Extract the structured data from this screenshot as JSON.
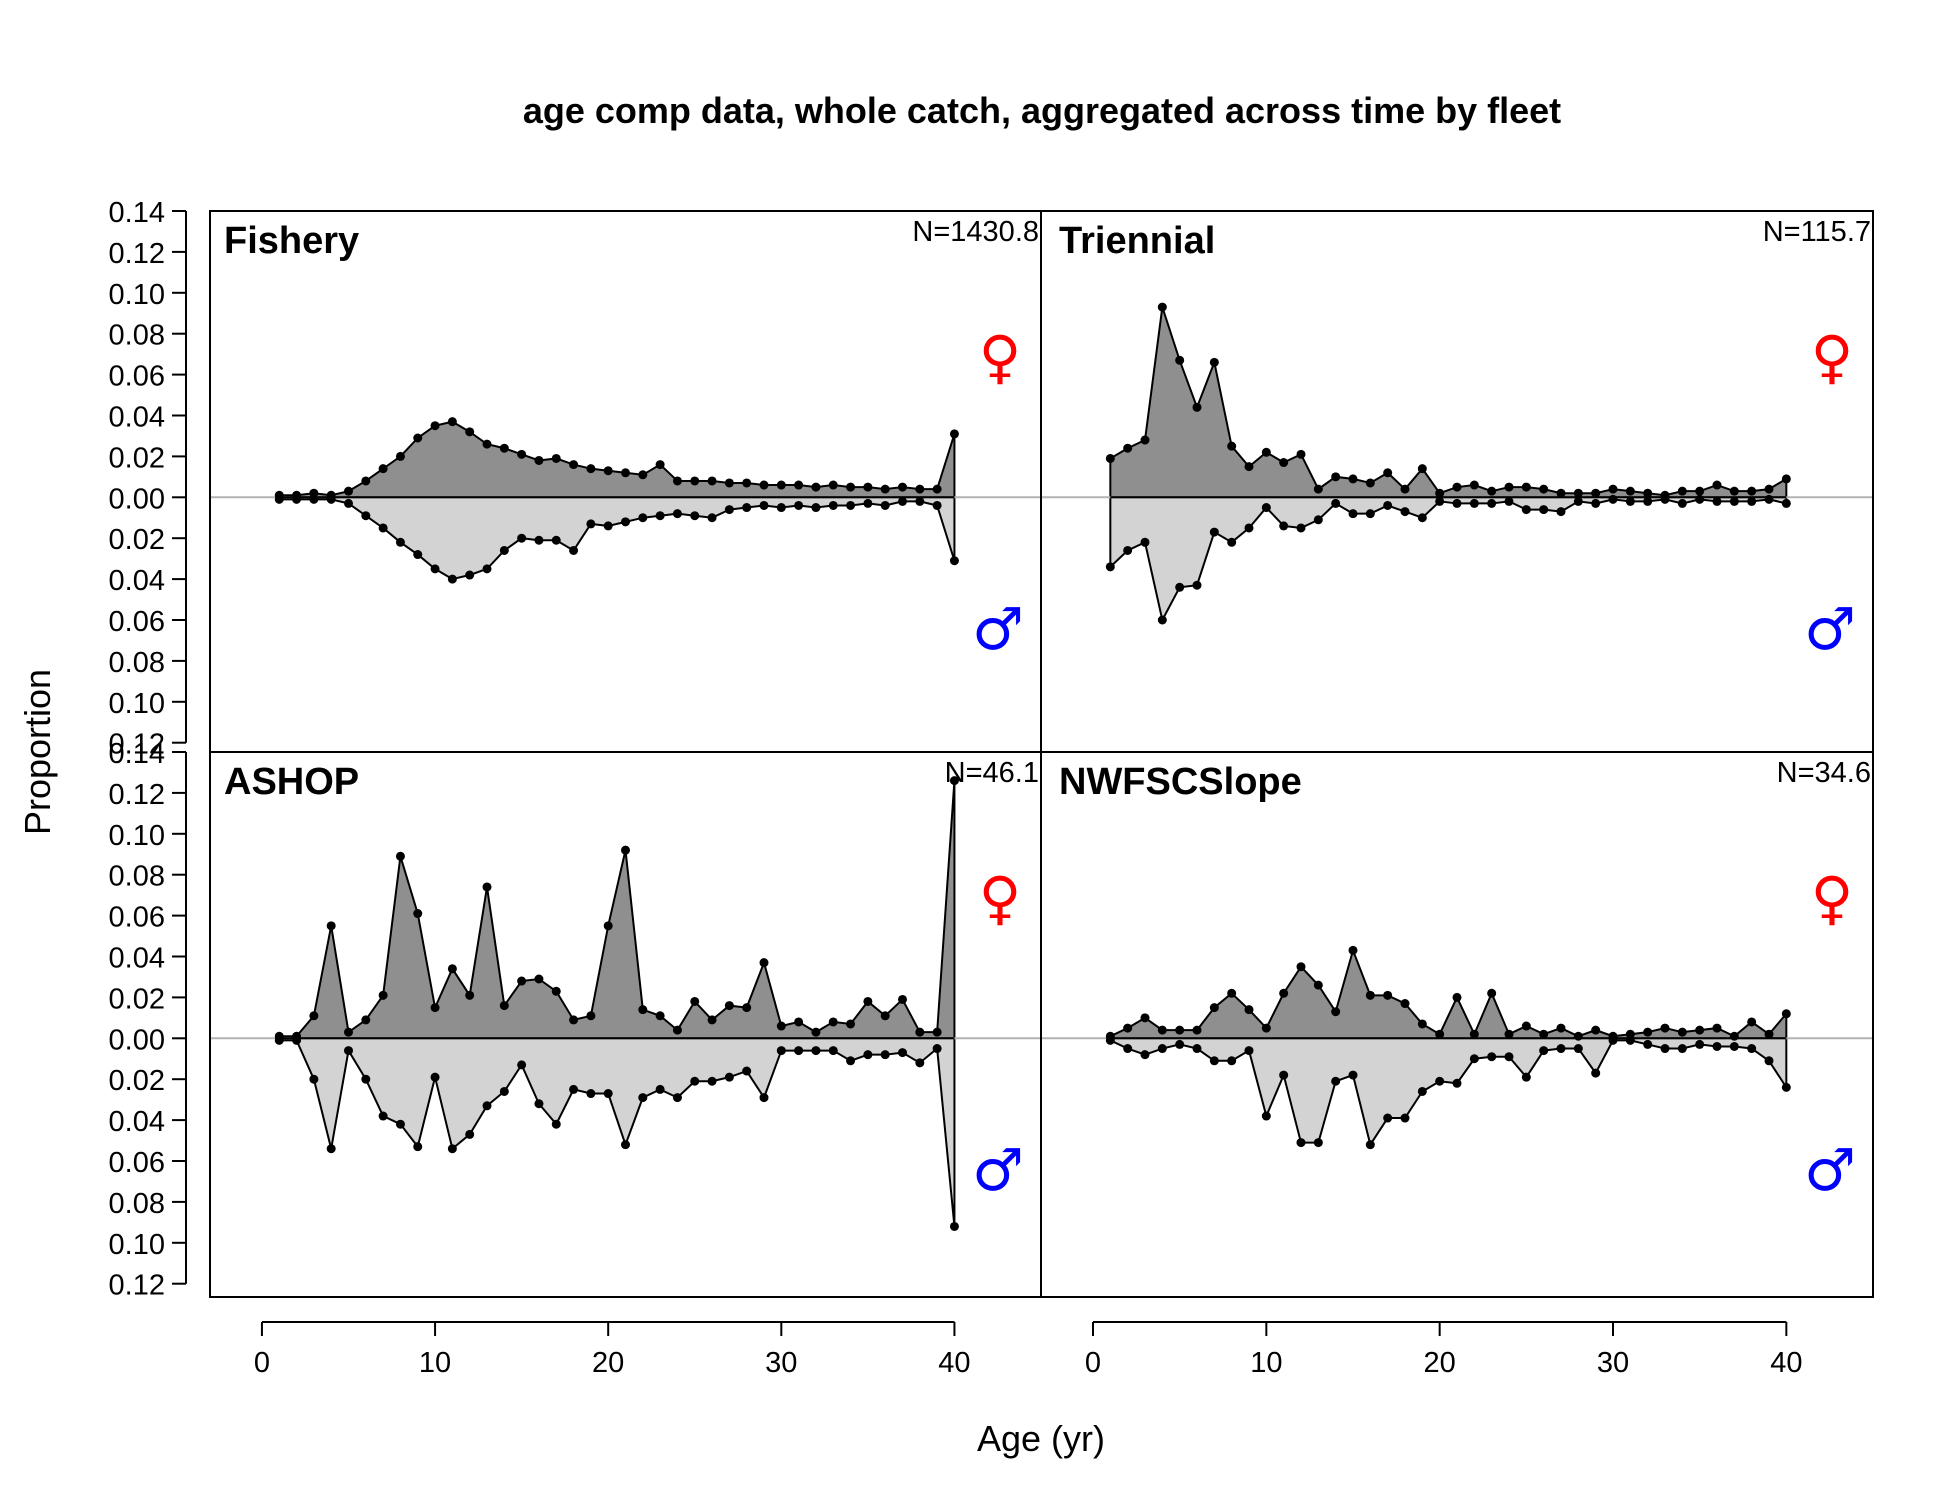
{
  "chart_data": {
    "type": "area",
    "title": "age comp data, whole catch, aggregated across time by fleet",
    "xlabel": "Age (yr)",
    "ylabel": "Proportion",
    "xlim": [
      -3,
      45
    ],
    "x_ticks": [
      0,
      10,
      20,
      30,
      40
    ],
    "x_tick_labels": [
      "0",
      "10",
      "20",
      "30",
      "40"
    ],
    "ylim_upper": [
      0,
      0.14
    ],
    "ylim_lower": [
      0,
      0.12
    ],
    "y_ticks_upper": [
      "0.14",
      "0.12",
      "0.10",
      "0.08",
      "0.06",
      "0.04",
      "0.02",
      "0.00"
    ],
    "y_ticks_lower": [
      "0.02",
      "0.04",
      "0.06",
      "0.08",
      "0.10",
      "0.12"
    ],
    "female_symbol": "♀",
    "male_symbol": "♂",
    "colors": {
      "female_fill": "#8f8f8f",
      "male_fill": "#d3d3d3",
      "female_symbol": "#ff0000",
      "male_symbol": "#0000ff",
      "zero_line": "#b3b3b3"
    },
    "ages": [
      1,
      2,
      3,
      4,
      5,
      6,
      7,
      8,
      9,
      10,
      11,
      12,
      13,
      14,
      15,
      16,
      17,
      18,
      19,
      20,
      21,
      22,
      23,
      24,
      25,
      26,
      27,
      28,
      29,
      30,
      31,
      32,
      33,
      34,
      35,
      36,
      37,
      38,
      39,
      40
    ],
    "panels": [
      {
        "name": "Fishery",
        "n_label": "N=1430.8",
        "female": [
          0.001,
          0.001,
          0.002,
          0.001,
          0.003,
          0.008,
          0.014,
          0.02,
          0.029,
          0.035,
          0.037,
          0.032,
          0.026,
          0.024,
          0.021,
          0.018,
          0.019,
          0.016,
          0.014,
          0.013,
          0.012,
          0.011,
          0.016,
          0.008,
          0.008,
          0.008,
          0.007,
          0.007,
          0.006,
          0.006,
          0.006,
          0.005,
          0.006,
          0.005,
          0.005,
          0.004,
          0.005,
          0.004,
          0.004,
          0.031
        ],
        "male": [
          0.001,
          0.001,
          0.001,
          0.001,
          0.003,
          0.009,
          0.015,
          0.022,
          0.028,
          0.035,
          0.04,
          0.038,
          0.035,
          0.026,
          0.02,
          0.021,
          0.021,
          0.026,
          0.013,
          0.014,
          0.012,
          0.01,
          0.009,
          0.008,
          0.009,
          0.01,
          0.006,
          0.005,
          0.004,
          0.005,
          0.004,
          0.005,
          0.004,
          0.004,
          0.003,
          0.004,
          0.002,
          0.002,
          0.004,
          0.031
        ]
      },
      {
        "name": "Triennial",
        "n_label": "N=115.7",
        "female": [
          0.019,
          0.024,
          0.028,
          0.093,
          0.067,
          0.044,
          0.066,
          0.025,
          0.015,
          0.022,
          0.017,
          0.021,
          0.004,
          0.01,
          0.009,
          0.007,
          0.012,
          0.004,
          0.014,
          0.002,
          0.005,
          0.006,
          0.003,
          0.005,
          0.005,
          0.004,
          0.002,
          0.002,
          0.002,
          0.004,
          0.003,
          0.002,
          0.001,
          0.003,
          0.003,
          0.006,
          0.003,
          0.003,
          0.004,
          0.009
        ],
        "male": [
          0.034,
          0.026,
          0.022,
          0.06,
          0.044,
          0.043,
          0.017,
          0.022,
          0.015,
          0.005,
          0.014,
          0.015,
          0.011,
          0.003,
          0.008,
          0.008,
          0.004,
          0.007,
          0.01,
          0.002,
          0.003,
          0.003,
          0.003,
          0.002,
          0.006,
          0.006,
          0.007,
          0.002,
          0.003,
          0.001,
          0.002,
          0.002,
          0.001,
          0.003,
          0.001,
          0.002,
          0.002,
          0.002,
          0.001,
          0.003
        ]
      },
      {
        "name": "ASHOP",
        "n_label": "N=46.1",
        "female": [
          0.001,
          0.001,
          0.011,
          0.055,
          0.003,
          0.009,
          0.021,
          0.089,
          0.061,
          0.015,
          0.034,
          0.021,
          0.074,
          0.016,
          0.028,
          0.029,
          0.023,
          0.009,
          0.011,
          0.055,
          0.092,
          0.014,
          0.011,
          0.004,
          0.018,
          0.009,
          0.016,
          0.015,
          0.037,
          0.006,
          0.008,
          0.003,
          0.008,
          0.007,
          0.018,
          0.011,
          0.019,
          0.003,
          0.003,
          0.126
        ],
        "male": [
          0.001,
          0.001,
          0.02,
          0.054,
          0.006,
          0.02,
          0.038,
          0.042,
          0.053,
          0.019,
          0.054,
          0.047,
          0.033,
          0.026,
          0.013,
          0.032,
          0.042,
          0.025,
          0.027,
          0.027,
          0.052,
          0.029,
          0.025,
          0.029,
          0.021,
          0.021,
          0.019,
          0.016,
          0.029,
          0.006,
          0.006,
          0.006,
          0.006,
          0.011,
          0.008,
          0.008,
          0.007,
          0.012,
          0.005,
          0.092
        ]
      },
      {
        "name": "NWFSCSlope",
        "n_label": "N=34.6",
        "female": [
          0.001,
          0.005,
          0.01,
          0.004,
          0.004,
          0.004,
          0.015,
          0.022,
          0.014,
          0.005,
          0.022,
          0.035,
          0.026,
          0.013,
          0.043,
          0.021,
          0.021,
          0.017,
          0.007,
          0.002,
          0.02,
          0.002,
          0.022,
          0.002,
          0.006,
          0.002,
          0.005,
          0.001,
          0.004,
          0.001,
          0.002,
          0.003,
          0.005,
          0.003,
          0.004,
          0.005,
          0.001,
          0.008,
          0.002,
          0.012
        ],
        "male": [
          0.001,
          0.005,
          0.008,
          0.005,
          0.003,
          0.005,
          0.011,
          0.011,
          0.006,
          0.038,
          0.018,
          0.051,
          0.051,
          0.021,
          0.018,
          0.052,
          0.039,
          0.039,
          0.026,
          0.021,
          0.022,
          0.01,
          0.009,
          0.009,
          0.019,
          0.006,
          0.005,
          0.005,
          0.017,
          0.001,
          0.001,
          0.003,
          0.005,
          0.005,
          0.003,
          0.004,
          0.004,
          0.005,
          0.011,
          0.024
        ]
      }
    ]
  }
}
